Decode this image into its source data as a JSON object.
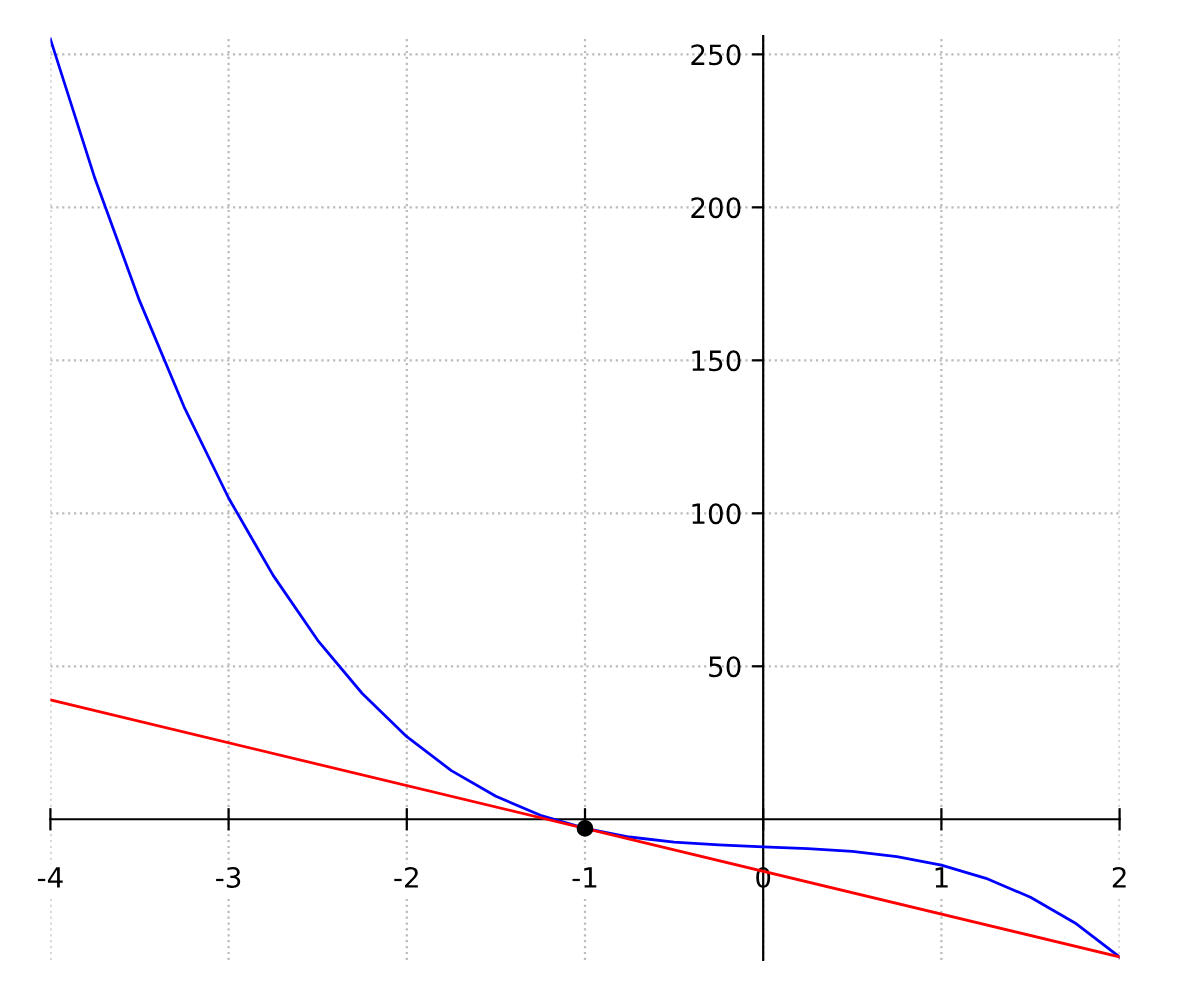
{
  "chart_data": {
    "type": "line",
    "series": [
      {
        "color": "#0000ff",
        "x": [
          -4,
          -3.75,
          -3.5,
          -3.25,
          -3,
          -2.75,
          -2.5,
          -2.25,
          -2,
          -1.75,
          -1.5,
          -1.25,
          -1,
          -0.75,
          -0.5,
          -0.25,
          0,
          0.25,
          0.5,
          0.75,
          1,
          1.25,
          1.5,
          1.75,
          2
        ],
        "values": [
          255,
          209.4,
          169.5,
          134.8,
          105,
          79.7,
          58.5,
          41.1,
          27,
          15.9,
          7.5,
          1.3,
          -3,
          -5.8,
          -7.5,
          -8.4,
          -9,
          -9.6,
          -10.5,
          -12.2,
          -15,
          -19.3,
          -25.5,
          -33.9,
          -45
        ]
      },
      {
        "color": "#ff0000",
        "x": [
          -4,
          2
        ],
        "values": [
          39,
          -45
        ]
      },
      {
        "type": "scatter",
        "color": "#000000",
        "marker": "circle",
        "x": [
          -1
        ],
        "values": [
          -3
        ]
      }
    ],
    "xlim": [
      -4,
      2
    ],
    "ylim": [
      -46,
      256
    ],
    "xticks": [
      -4,
      -3,
      -2,
      -1,
      0,
      1,
      2
    ],
    "yticks": [
      50,
      100,
      150,
      200,
      250
    ],
    "grid": true,
    "line_style": "solid"
  }
}
